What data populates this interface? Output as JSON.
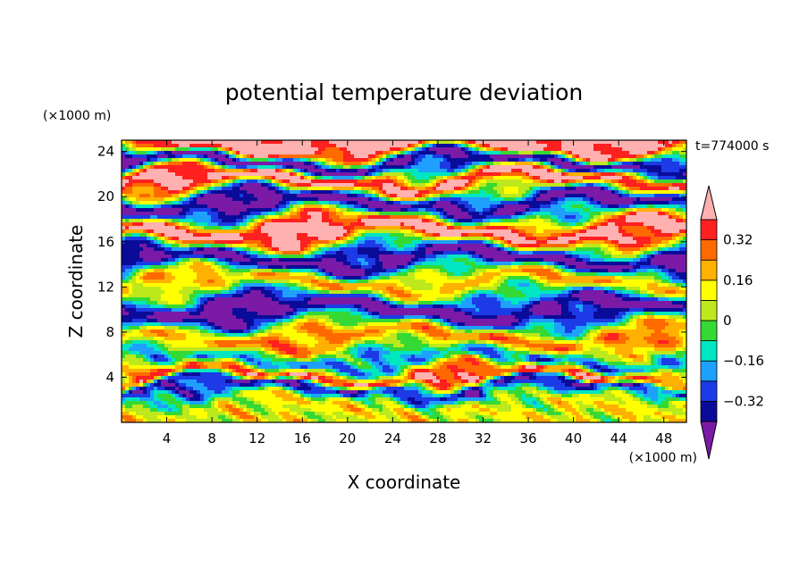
{
  "chart_data": {
    "type": "heatmap",
    "title": "potential temperature deviation",
    "xlabel": "X coordinate",
    "ylabel": "Z coordinate",
    "x_unit_label": "(×1000 m)",
    "y_unit_label": "(×1000 m)",
    "time_label": "t=774000 s",
    "xlim": [
      0,
      50
    ],
    "ylim": [
      0,
      25
    ],
    "x_ticks": [
      4,
      8,
      12,
      16,
      20,
      24,
      28,
      32,
      36,
      40,
      44,
      48
    ],
    "y_ticks": [
      4,
      8,
      12,
      16,
      20,
      24
    ],
    "x_tick_labels": [
      "4",
      "8",
      "12",
      "16",
      "20",
      "24",
      "28",
      "32",
      "36",
      "40",
      "44",
      "48"
    ],
    "y_tick_labels": [
      "4",
      "8",
      "12",
      "16",
      "20",
      "24"
    ],
    "colorbar": {
      "levels": [
        -0.4,
        -0.32,
        -0.24,
        -0.16,
        -0.08,
        0,
        0.08,
        0.16,
        0.24,
        0.32,
        0.4
      ],
      "tick_values": [
        0.32,
        0.16,
        0,
        -0.16,
        -0.32
      ],
      "tick_labels": [
        "0.32",
        "0.16",
        "0",
        "−0.16",
        "−0.32"
      ],
      "colors": [
        "#7a1aa6",
        "#0b0b99",
        "#1c3be6",
        "#1ea0ff",
        "#00e6c0",
        "#34d934",
        "#bde81c",
        "#ffff00",
        "#ffb000",
        "#ff6a00",
        "#ff2020",
        "#ffb0b0"
      ],
      "extend": "both"
    },
    "field": {
      "description": "banded layered structure",
      "layers_z": [
        {
          "z": 1.5,
          "value": 0.1
        },
        {
          "z": 3.2,
          "value": -0.36
        },
        {
          "z": 4.0,
          "value": 0.35
        },
        {
          "z": 5.5,
          "value": -0.2
        },
        {
          "z": 7.5,
          "value": 0.25
        },
        {
          "z": 10.0,
          "value": -0.45
        },
        {
          "z": 12.5,
          "value": 0.2
        },
        {
          "z": 14.5,
          "value": -0.45
        },
        {
          "z": 17.0,
          "value": 0.45
        },
        {
          "z": 19.5,
          "value": -0.45
        },
        {
          "z": 21.5,
          "value": 0.45
        },
        {
          "z": 23.0,
          "value": -0.45
        },
        {
          "z": 24.5,
          "value": 0.45
        }
      ]
    }
  }
}
